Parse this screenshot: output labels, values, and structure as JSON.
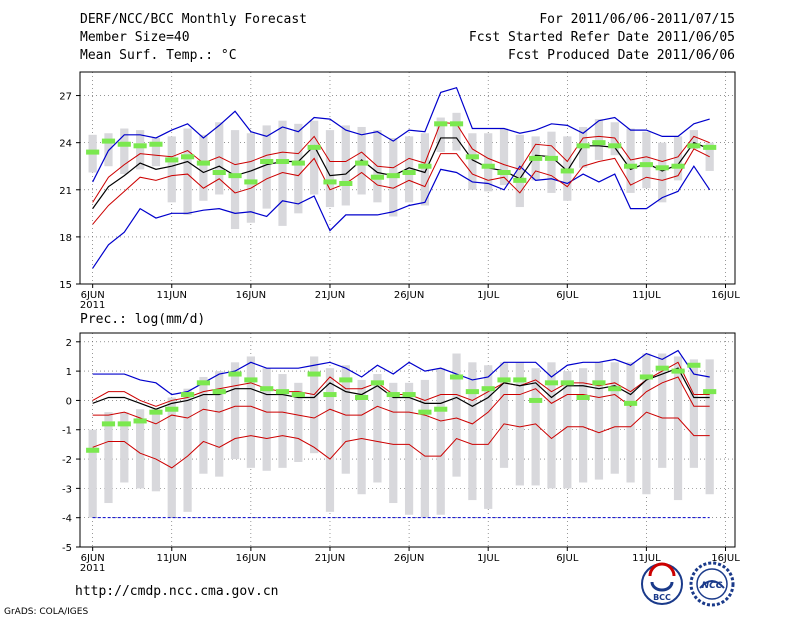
{
  "header": {
    "title": "DERF/NCC/BCC Monthly Forecast",
    "member_size": "Member Size=40",
    "variable": "Mean Surf. Temp.: °C",
    "period": "For 2011/06/06-2011/07/15",
    "start_date": "Fcst Started Refer Date 2011/06/05",
    "produced_date": "Fcst Produced Date 2011/06/06"
  },
  "footer": {
    "url": "http://cmdp.ncc.cma.gov.cn",
    "credit": "GrADS: COLA/IGES",
    "logo_left_text": "BCC",
    "logo_right_text": "NCC"
  },
  "colors": {
    "bar": "#d8d8dc",
    "marker": "#7be84f",
    "envelope": "#0000cc",
    "spread": "#cc0000",
    "mean": "#000000",
    "grid": "#555555"
  },
  "chart_data": [
    {
      "type": "line",
      "title": "Mean Surf. Temp.: °C",
      "x": [
        1,
        2,
        3,
        4,
        5,
        6,
        7,
        8,
        9,
        10,
        11,
        12,
        13,
        14,
        15,
        16,
        17,
        18,
        19,
        20,
        21,
        22,
        23,
        24,
        25,
        26,
        27,
        28,
        29,
        30,
        31,
        32,
        33,
        34,
        35,
        36,
        37,
        38,
        39,
        40
      ],
      "x_tick_labels": [
        "6JUN",
        "11JUN",
        "16JUN",
        "21JUN",
        "26JUN",
        "1JUL",
        "6JUL",
        "11JUL",
        "16JUL"
      ],
      "x_tick_positions": [
        1,
        6,
        11,
        16,
        21,
        26,
        31,
        36,
        41
      ],
      "year_label": "2011",
      "ylim": [
        15,
        28.5
      ],
      "y_ticks": [
        15,
        18,
        21,
        24,
        27
      ],
      "series": [
        {
          "name": "max",
          "values": [
            16,
            17.5,
            18.3,
            19.8,
            19.2,
            19.5,
            19.5,
            19.7,
            19.8,
            19.5,
            19.6,
            19.3,
            20.3,
            20.1,
            20.6,
            18.4,
            19.4,
            19.4,
            19.4,
            19.6,
            20.0,
            20.2,
            22.3,
            22.1,
            21.5,
            21.4,
            21.0,
            22.5,
            21.6,
            21.7,
            21.4,
            22.0,
            21.5,
            22.0,
            19.8,
            19.8,
            20.5,
            20.9,
            22.5,
            21.0
          ]
        },
        {
          "name": "max_top",
          "values": [
            21.5,
            23.5,
            24.5,
            24.5,
            24.3,
            24.8,
            25.2,
            24.3,
            25.1,
            26.0,
            24.7,
            24.4,
            25.0,
            24.7,
            25.6,
            25.5,
            24.8,
            24.5,
            24.7,
            24.1,
            24.8,
            24.7,
            27.2,
            27.5,
            24.9,
            24.9,
            24.9,
            24.6,
            24.8,
            25.2,
            25.1,
            24.6,
            25.4,
            25.6,
            24.8,
            24.8,
            24.4,
            24.4,
            25.2,
            25.5
          ]
        },
        {
          "name": "q_low",
          "values": [
            18.8,
            20.0,
            20.9,
            21.8,
            21.6,
            21.9,
            22.0,
            21.1,
            21.7,
            20.8,
            21.1,
            21.7,
            22.1,
            21.9,
            23.0,
            21.0,
            21.4,
            22.1,
            21.3,
            21.1,
            21.6,
            21.2,
            23.3,
            23.3,
            22.0,
            21.6,
            21.8,
            20.8,
            22.2,
            21.9,
            21.2,
            22.5,
            22.8,
            23.0,
            21.3,
            21.8,
            21.6,
            21.9,
            23.6,
            23.1
          ]
        },
        {
          "name": "mean",
          "values": [
            19.8,
            21.2,
            21.9,
            22.7,
            22.3,
            22.5,
            22.8,
            22.1,
            22.5,
            21.9,
            22.2,
            22.6,
            22.8,
            22.8,
            23.8,
            21.9,
            22.0,
            22.9,
            22.1,
            21.9,
            22.4,
            22.1,
            24.3,
            24.3,
            22.9,
            22.4,
            22.2,
            21.7,
            23.2,
            23.1,
            22.2,
            23.8,
            23.8,
            23.7,
            22.3,
            22.7,
            22.2,
            22.6,
            24.0,
            23.6
          ]
        },
        {
          "name": "q_high",
          "values": [
            20.2,
            21.8,
            22.6,
            23.3,
            23.2,
            23.1,
            23.5,
            22.7,
            23.1,
            22.6,
            22.8,
            23.2,
            23.4,
            23.3,
            24.4,
            22.8,
            22.8,
            23.4,
            22.5,
            22.4,
            23.0,
            22.7,
            25.3,
            25.2,
            23.6,
            23.0,
            22.6,
            22.3,
            23.9,
            23.8,
            22.8,
            24.3,
            24.4,
            24.3,
            22.9,
            23.1,
            22.8,
            23.1,
            24.4,
            24.0
          ]
        },
        {
          "name": "obs_marker",
          "values": [
            23.4,
            24.1,
            23.9,
            23.8,
            23.9,
            22.9,
            23.1,
            22.7,
            22.1,
            21.9,
            21.5,
            22.8,
            22.8,
            22.7,
            23.7,
            21.5,
            21.4,
            22.7,
            21.8,
            21.9,
            22.1,
            22.5,
            25.2,
            25.2,
            23.1,
            22.5,
            22.1,
            21.6,
            23.0,
            23.0,
            22.2,
            23.8,
            24.0,
            23.8,
            22.5,
            22.6,
            22.4,
            22.5,
            23.8,
            23.7
          ]
        },
        {
          "name": "bar_low",
          "values": [
            22.1,
            22.5,
            22.0,
            22.3,
            22.5,
            20.2,
            19.4,
            20.3,
            20.7,
            18.5,
            18.9,
            19.8,
            18.7,
            19.5,
            20.7,
            19.9,
            20.0,
            20.7,
            20.2,
            19.3,
            20.2,
            20.0,
            23.4,
            23.5,
            21.0,
            20.9,
            21.3,
            19.9,
            21.6,
            20.8,
            20.3,
            22.4,
            22.9,
            23.2,
            20.8,
            21.1,
            20.2,
            21.6,
            23.6,
            22.2
          ]
        },
        {
          "name": "bar_high",
          "values": [
            24.5,
            24.6,
            24.9,
            24.8,
            24.3,
            24.4,
            24.9,
            24.5,
            25.3,
            24.8,
            24.6,
            25.1,
            25.4,
            25.2,
            25.4,
            24.8,
            25.1,
            25.0,
            24.8,
            24.3,
            24.4,
            24.6,
            25.6,
            25.9,
            24.6,
            24.6,
            24.9,
            24.5,
            24.4,
            24.7,
            24.4,
            25.0,
            25.5,
            25.3,
            24.9,
            24.7,
            24.0,
            24.4,
            24.8,
            24.0
          ]
        }
      ]
    },
    {
      "type": "line",
      "title": "Prec.: log(mm/d)",
      "x": [
        1,
        2,
        3,
        4,
        5,
        6,
        7,
        8,
        9,
        10,
        11,
        12,
        13,
        14,
        15,
        16,
        17,
        18,
        19,
        20,
        21,
        22,
        23,
        24,
        25,
        26,
        27,
        28,
        29,
        30,
        31,
        32,
        33,
        34,
        35,
        36,
        37,
        38,
        39,
        40
      ],
      "x_tick_labels": [
        "6JUN",
        "11JUN",
        "16JUN",
        "21JUN",
        "26JUN",
        "1JUL",
        "6JUL",
        "11JUL",
        "16JUL"
      ],
      "x_tick_positions": [
        1,
        6,
        11,
        16,
        21,
        26,
        31,
        36,
        41
      ],
      "year_label": "2011",
      "ylim": [
        -5,
        2.3
      ],
      "y_ticks": [
        -5,
        -4,
        -3,
        -2,
        -1,
        0,
        1,
        2
      ],
      "baseline": -4,
      "series": [
        {
          "name": "max",
          "values": [
            0.9,
            0.9,
            0.9,
            0.7,
            0.6,
            0.2,
            0.3,
            0.6,
            0.9,
            1.0,
            1.3,
            1.1,
            1.1,
            1.1,
            1.2,
            1.3,
            1.1,
            0.8,
            1.2,
            0.9,
            1.3,
            1.0,
            1.1,
            0.9,
            0.7,
            0.8,
            1.3,
            1.3,
            1.3,
            0.8,
            1.2,
            1.3,
            1.3,
            1.4,
            1.2,
            1.6,
            1.4,
            1.7,
            0.9,
            0.8
          ]
        },
        {
          "name": "q_high",
          "values": [
            0.0,
            0.3,
            0.3,
            0.0,
            -0.2,
            0.0,
            0.1,
            0.3,
            0.4,
            0.5,
            0.6,
            0.4,
            0.3,
            0.3,
            0.2,
            0.8,
            0.4,
            0.4,
            0.6,
            0.2,
            0.2,
            0.0,
            0.2,
            0.2,
            0.0,
            0.3,
            0.6,
            0.5,
            0.7,
            0.3,
            0.6,
            0.6,
            0.5,
            0.6,
            0.3,
            0.7,
            1.0,
            1.3,
            0.2,
            0.2
          ]
        },
        {
          "name": "mean",
          "values": [
            -0.1,
            0.1,
            0.1,
            -0.1,
            -0.3,
            -0.1,
            0.0,
            0.2,
            0.2,
            0.4,
            0.4,
            0.2,
            0.2,
            0.1,
            0.1,
            0.6,
            0.3,
            0.2,
            0.5,
            0.1,
            0.1,
            -0.1,
            -0.1,
            0.1,
            -0.2,
            0.1,
            0.6,
            0.5,
            0.6,
            0.1,
            0.5,
            0.5,
            0.4,
            0.5,
            0.2,
            0.7,
            0.9,
            1.1,
            0.1,
            0.1
          ]
        },
        {
          "name": "q_low",
          "values": [
            -0.5,
            -0.5,
            -0.4,
            -0.6,
            -0.8,
            -0.5,
            -0.6,
            -0.3,
            -0.4,
            -0.2,
            -0.2,
            -0.4,
            -0.4,
            -0.5,
            -0.6,
            -0.3,
            -0.5,
            -0.5,
            -0.2,
            -0.4,
            -0.4,
            -0.5,
            -0.7,
            -0.6,
            -0.8,
            -0.4,
            0.2,
            0.2,
            0.4,
            -0.1,
            0.2,
            0.2,
            0.1,
            0.2,
            -0.2,
            0.3,
            0.6,
            0.8,
            -0.2,
            -0.2
          ]
        },
        {
          "name": "min",
          "values": [
            -1.6,
            -1.4,
            -1.4,
            -1.8,
            -2.0,
            -2.3,
            -1.9,
            -1.4,
            -1.6,
            -1.3,
            -1.2,
            -1.3,
            -1.2,
            -1.3,
            -1.6,
            -2.0,
            -1.4,
            -1.3,
            -1.4,
            -1.5,
            -1.5,
            -1.9,
            -1.9,
            -1.3,
            -1.5,
            -1.5,
            -0.8,
            -0.9,
            -0.8,
            -1.3,
            -0.9,
            -0.9,
            -1.1,
            -0.9,
            -0.9,
            -0.4,
            -0.6,
            -0.6,
            -1.2,
            -1.2
          ]
        },
        {
          "name": "obs_marker",
          "values": [
            -1.7,
            -0.8,
            -0.8,
            -0.7,
            -0.4,
            -0.3,
            0.2,
            0.6,
            0.3,
            0.9,
            0.7,
            0.4,
            0.3,
            0.2,
            0.9,
            0.2,
            0.7,
            0.1,
            0.6,
            0.2,
            0.2,
            -0.4,
            -0.3,
            0.8,
            0.3,
            0.4,
            0.7,
            0.7,
            0.0,
            0.6,
            0.6,
            0.1,
            0.6,
            0.4,
            -0.1,
            0.8,
            1.1,
            1.0,
            1.2,
            0.3
          ]
        },
        {
          "name": "bar_low",
          "values": [
            -4.0,
            -3.5,
            -2.8,
            -3.0,
            -3.1,
            -4.0,
            -3.8,
            -2.5,
            -2.6,
            -2.0,
            -2.3,
            -2.4,
            -2.3,
            -2.1,
            -1.8,
            -3.8,
            -2.5,
            -3.2,
            -2.8,
            -3.5,
            -3.9,
            -4.0,
            -3.9,
            -2.6,
            -3.4,
            -3.7,
            -2.3,
            -2.9,
            -2.9,
            -3.0,
            -3.0,
            -2.8,
            -2.7,
            -2.5,
            -2.8,
            -3.2,
            -2.3,
            -3.4,
            -2.3,
            -3.2
          ]
        },
        {
          "name": "bar_high",
          "values": [
            -1.0,
            -0.4,
            -0.4,
            -0.3,
            -0.3,
            0.1,
            0.4,
            0.8,
            1.0,
            1.3,
            1.5,
            1.1,
            0.9,
            0.6,
            1.5,
            1.1,
            1.2,
            0.7,
            0.9,
            0.6,
            0.6,
            0.7,
            1.1,
            1.6,
            1.3,
            1.2,
            1.3,
            1.3,
            1.1,
            1.3,
            1.0,
            1.1,
            1.3,
            1.3,
            1.3,
            1.6,
            1.6,
            1.5,
            1.4,
            1.4
          ]
        }
      ]
    }
  ]
}
